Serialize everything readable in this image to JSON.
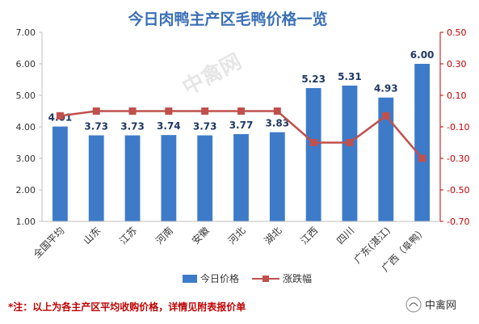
{
  "chart_data": {
    "type": "bar",
    "title": "今日肉鸭主产区毛鸭价格一览",
    "categories": [
      "全国平均",
      "山东",
      "江苏",
      "河南",
      "安徽",
      "河北",
      "湖北",
      "江西",
      "四川",
      "广东(湛江)",
      "广西（阜鸭）"
    ],
    "series": [
      {
        "name": "今日价格",
        "type": "bar",
        "axis": "left",
        "color": "#3d7bc9",
        "values": [
          4.01,
          3.73,
          3.73,
          3.74,
          3.73,
          3.77,
          3.83,
          5.23,
          5.31,
          4.93,
          6.0
        ],
        "labels": [
          "4.01",
          "3.73",
          "3.73",
          "3.74",
          "3.73",
          "3.77",
          "3.83",
          "5.23",
          "5.31",
          "4.93",
          "6.00"
        ]
      },
      {
        "name": "涨跌幅",
        "type": "line",
        "axis": "right",
        "color": "#c0504d",
        "values": [
          -0.03,
          0.0,
          0.0,
          0.0,
          0.0,
          0.0,
          0.0,
          -0.2,
          -0.2,
          -0.03,
          -0.3
        ]
      }
    ],
    "ylim_left": [
      1.0,
      7.0
    ],
    "yticks_left": [
      "1.00",
      "2.00",
      "3.00",
      "4.00",
      "5.00",
      "6.00",
      "7.00"
    ],
    "ylim_right": [
      -0.7,
      0.5
    ],
    "yticks_right": [
      "-0.70",
      "-0.50",
      "-0.30",
      "-0.10",
      "0.10",
      "0.30",
      "0.50"
    ],
    "grid": false,
    "legend": "bottom"
  },
  "footnote": "*注：以上为各主产区平均收购价格，详情见附表报价单",
  "brand": "中禽网",
  "watermark": "中禽网",
  "colors": {
    "bar": "#3d7bc9",
    "line": "#c0504d",
    "title": "#3a6fb5",
    "right_axis": "#c00000"
  }
}
